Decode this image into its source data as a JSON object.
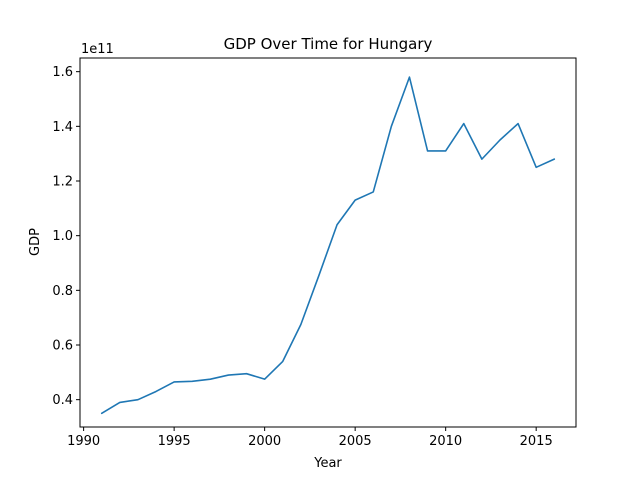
{
  "chart_data": {
    "type": "line",
    "title": "GDP Over Time for Hungary",
    "xlabel": "Year",
    "ylabel": "GDP",
    "y_offset_label": "1e11",
    "xlim": [
      1989.8,
      2017.2
    ],
    "ylim": [
      30000000000.0,
      165000000000.0
    ],
    "grid": false,
    "legend": "none",
    "x_ticks": [
      1990,
      1995,
      2000,
      2005,
      2010,
      2015
    ],
    "x_tick_labels": [
      "1990",
      "1995",
      "2000",
      "2005",
      "2010",
      "2015"
    ],
    "y_ticks": [
      40000000000.0,
      60000000000.0,
      80000000000.0,
      100000000000.0,
      120000000000.0,
      140000000000.0,
      160000000000.0
    ],
    "y_tick_labels": [
      "0.4",
      "0.6",
      "0.8",
      "1.0",
      "1.2",
      "1.4",
      "1.6"
    ],
    "line_color": "#1f77b4",
    "series": [
      {
        "x": [
          1991,
          1992,
          1993,
          1994,
          1995,
          1996,
          1997,
          1998,
          1999,
          2000,
          2001,
          2002,
          2003,
          2004,
          2005,
          2006,
          2007,
          2008,
          2009,
          2010,
          2011,
          2012,
          2013,
          2014,
          2015,
          2016
        ],
        "values": [
          35000000000.0,
          39000000000.0,
          40000000000.0,
          43000000000.0,
          46500000000.0,
          46700000000.0,
          47500000000.0,
          49000000000.0,
          49500000000.0,
          47500000000.0,
          54000000000.0,
          67500000000.0,
          85500000000.0,
          104000000000.0,
          113000000000.0,
          116000000000.0,
          140000000000.0,
          158000000000.0,
          131000000000.0,
          131000000000.0,
          141000000000.0,
          128000000000.0,
          135000000000.0,
          141000000000.0,
          125000000000.0,
          128000000000.0
        ]
      }
    ]
  }
}
